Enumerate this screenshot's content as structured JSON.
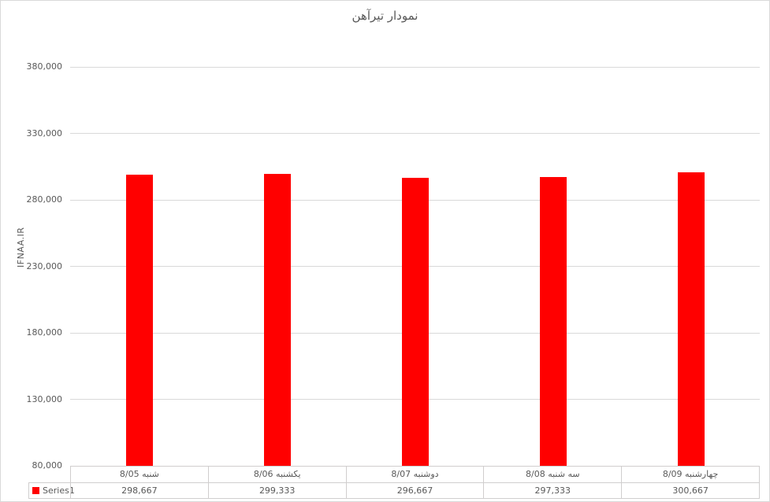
{
  "legend": {
    "label": "Series1"
  },
  "colors": {
    "bar": "#ff0000",
    "gridline": "#d9d9d9",
    "table_border": "#d0cece",
    "text": "#595959",
    "background": "#ffffff"
  },
  "chart_data": {
    "type": "bar",
    "title": "نمودار تیرآهن",
    "ylabel": "IFNAA.IR",
    "xlabel": "",
    "categories": [
      "شنبه 8/05",
      "یکشنبه 8/06",
      "دوشنبه 8/07",
      "سه شنبه 8/08",
      "چهارشنبه 8/09"
    ],
    "series": [
      {
        "name": "Series1",
        "color": "#ff0000",
        "values": [
          298667,
          299333,
          296667,
          297333,
          300667
        ]
      }
    ],
    "value_labels": [
      "298,667",
      "299,333",
      "296,667",
      "297,333",
      "300,667"
    ],
    "ylim": [
      80000,
      380000
    ],
    "ytick_step": 50000,
    "yticks": [
      {
        "value": 380000,
        "label": "380,000"
      },
      {
        "value": 330000,
        "label": "330,000"
      },
      {
        "value": 280000,
        "label": "280,000"
      },
      {
        "value": 230000,
        "label": "230,000"
      },
      {
        "value": 180000,
        "label": "180,000"
      },
      {
        "value": 130000,
        "label": "130,000"
      },
      {
        "value": 80000,
        "label": "80,000"
      }
    ],
    "grid": true,
    "legend_position": "bottom-data-table-left",
    "data_table_shown": true,
    "text_direction": "rtl"
  }
}
